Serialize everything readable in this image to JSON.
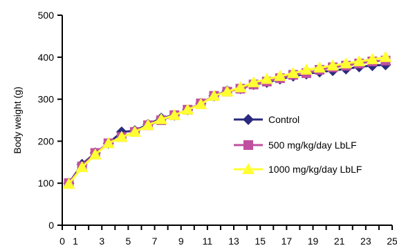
{
  "chart_data": {
    "type": "line",
    "title": "",
    "xlabel": "",
    "ylabel": "Body weight (g)",
    "xlim": [
      0,
      25
    ],
    "ylim": [
      0,
      500
    ],
    "x_ticks": [
      "0",
      "1",
      "3",
      "5",
      "7",
      "9",
      "11",
      "13",
      "15",
      "17",
      "19",
      "21",
      "23",
      "25"
    ],
    "y_ticks": [
      "0",
      "100",
      "200",
      "300",
      "400",
      "500"
    ],
    "grid": false,
    "legend_position": "right",
    "series": [
      {
        "name": "Control",
        "color": "#2b2a7e",
        "marker": "diamond",
        "x": [
          0.5,
          1.5,
          2.5,
          3.5,
          4.5,
          5.5,
          6.5,
          7.5,
          8.5,
          9.5,
          10.5,
          11.5,
          12.5,
          13.5,
          14.5,
          15.5,
          16.5,
          17.5,
          18.5,
          19.5,
          20.5,
          21.5,
          22.5,
          23.5,
          24.5
        ],
        "values": [
          100,
          145,
          172,
          195,
          222,
          225,
          240,
          255,
          262,
          275,
          290,
          308,
          320,
          325,
          335,
          340,
          348,
          355,
          360,
          365,
          368,
          372,
          377,
          380,
          382
        ]
      },
      {
        "name": "500 mg/kg/day LbLF",
        "color": "#c0509f",
        "marker": "square",
        "x": [
          0.5,
          1.5,
          2.5,
          3.5,
          4.5,
          5.5,
          6.5,
          7.5,
          8.5,
          9.5,
          10.5,
          11.5,
          12.5,
          13.5,
          14.5,
          15.5,
          16.5,
          17.5,
          18.5,
          19.5,
          20.5,
          21.5,
          22.5,
          23.5,
          24.5
        ],
        "values": [
          100,
          140,
          172,
          195,
          210,
          222,
          238,
          250,
          262,
          275,
          290,
          308,
          318,
          325,
          335,
          342,
          350,
          358,
          362,
          370,
          376,
          380,
          385,
          390,
          392
        ]
      },
      {
        "name": "1000 mg/kg/day LbLF",
        "color": "#ffff33",
        "marker": "triangle",
        "x": [
          0.5,
          1.5,
          2.5,
          3.5,
          4.5,
          5.5,
          6.5,
          7.5,
          8.5,
          9.5,
          10.5,
          11.5,
          12.5,
          13.5,
          14.5,
          15.5,
          16.5,
          17.5,
          18.5,
          19.5,
          20.5,
          21.5,
          22.5,
          23.5,
          24.5
        ],
        "values": [
          98,
          138,
          168,
          195,
          210,
          222,
          238,
          252,
          262,
          275,
          288,
          308,
          318,
          328,
          340,
          348,
          355,
          362,
          370,
          375,
          380,
          385,
          390,
          395,
          400
        ]
      }
    ]
  }
}
